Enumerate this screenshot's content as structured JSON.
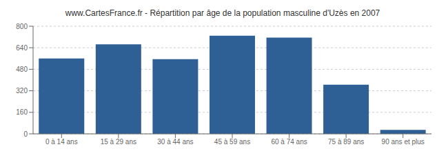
{
  "chart_data": {
    "type": "bar",
    "title": "www.CartesFrance.fr - Répartition par âge de la population masculine d'Uzès en 2007",
    "categories": [
      "0 à 14 ans",
      "15 à 29 ans",
      "30 à 44 ans",
      "45 à 59 ans",
      "60 à 74 ans",
      "75 à 89 ans",
      "90 ans et plus"
    ],
    "values": [
      560,
      665,
      555,
      730,
      715,
      365,
      30
    ],
    "color": "#2e6096",
    "ylim": [
      0,
      800
    ],
    "yticks": [
      0,
      160,
      320,
      480,
      640,
      800
    ],
    "grid": true
  }
}
